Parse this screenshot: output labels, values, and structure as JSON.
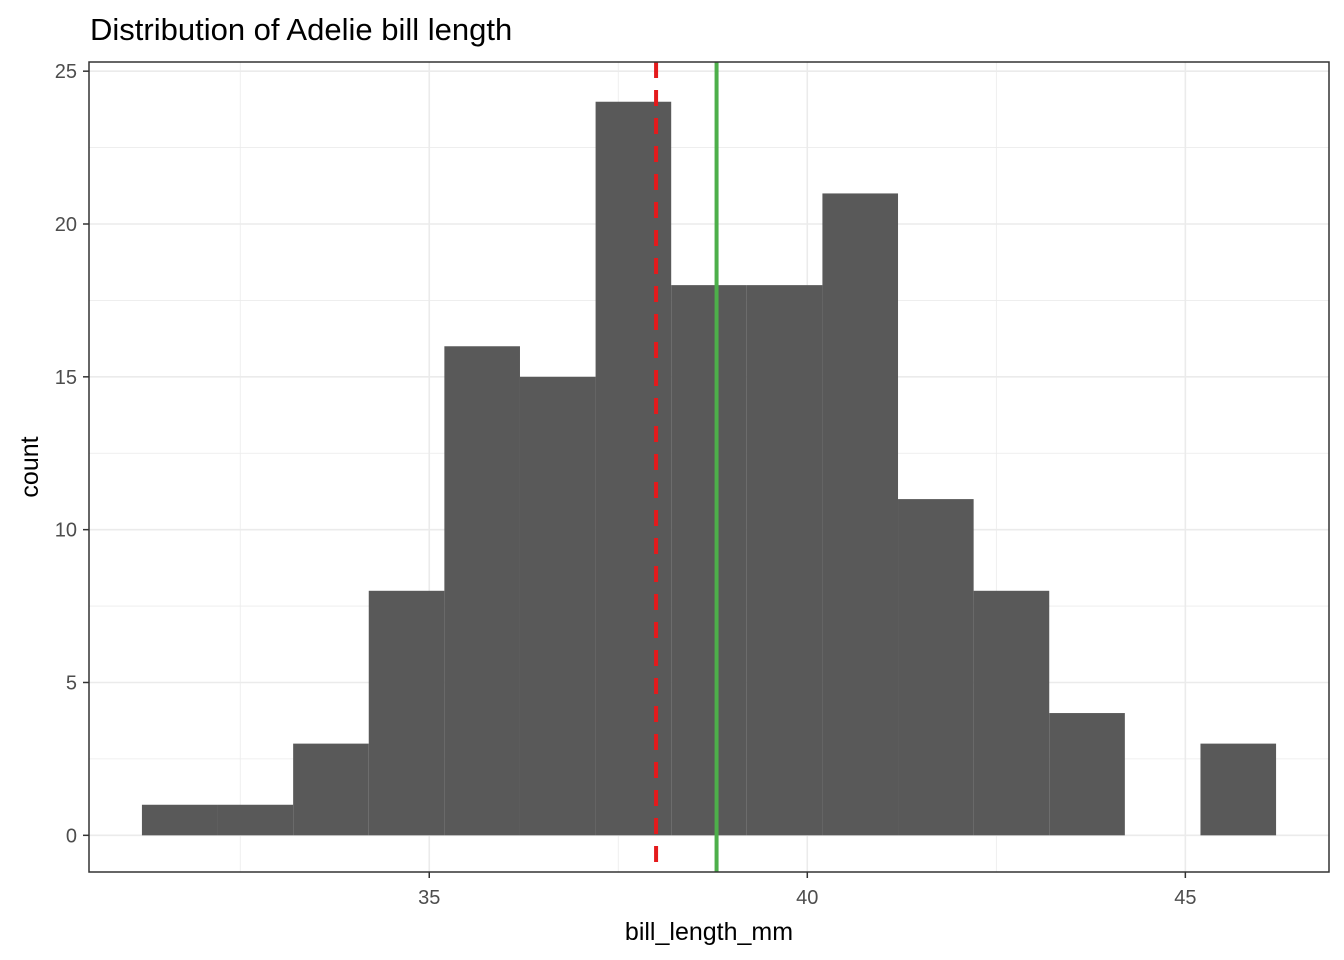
{
  "chart_data": {
    "type": "histogram",
    "title": "Distribution of Adelie bill length",
    "xlabel": "bill_length_mm",
    "ylabel": "count",
    "xlim": [
      30.5,
      46.9
    ],
    "ylim": [
      -1.2,
      25.3
    ],
    "x_ticks": [
      35,
      40,
      45
    ],
    "y_ticks": [
      0,
      5,
      10,
      15,
      20,
      25
    ],
    "x_minor_ticks": [
      32.5,
      37.5,
      42.5
    ],
    "y_minor_ticks": [
      2.5,
      7.5,
      12.5,
      17.5,
      22.5
    ],
    "bin_width": 1,
    "bars_color": "#595959",
    "bins": [
      {
        "x_start": 31.2,
        "x_end": 32.2,
        "count": 1
      },
      {
        "x_start": 32.2,
        "x_end": 33.2,
        "count": 1
      },
      {
        "x_start": 33.2,
        "x_end": 34.2,
        "count": 3
      },
      {
        "x_start": 34.2,
        "x_end": 35.2,
        "count": 8
      },
      {
        "x_start": 35.2,
        "x_end": 36.2,
        "count": 16
      },
      {
        "x_start": 36.2,
        "x_end": 37.2,
        "count": 15
      },
      {
        "x_start": 37.2,
        "x_end": 38.2,
        "count": 24
      },
      {
        "x_start": 38.2,
        "x_end": 39.2,
        "count": 18
      },
      {
        "x_start": 39.2,
        "x_end": 40.2,
        "count": 18
      },
      {
        "x_start": 40.2,
        "x_end": 41.2,
        "count": 21
      },
      {
        "x_start": 41.2,
        "x_end": 42.2,
        "count": 11
      },
      {
        "x_start": 42.2,
        "x_end": 43.2,
        "count": 8
      },
      {
        "x_start": 43.2,
        "x_end": 44.2,
        "count": 4
      },
      {
        "x_start": 44.2,
        "x_end": 45.2,
        "count": 0
      },
      {
        "x_start": 45.2,
        "x_end": 46.2,
        "count": 3
      }
    ],
    "vlines": [
      {
        "x": 38.0,
        "color": "#e41a1c",
        "style": "dashed"
      },
      {
        "x": 38.8,
        "color": "#4daf4a",
        "style": "solid"
      }
    ],
    "grid": true,
    "theme": "bw"
  }
}
